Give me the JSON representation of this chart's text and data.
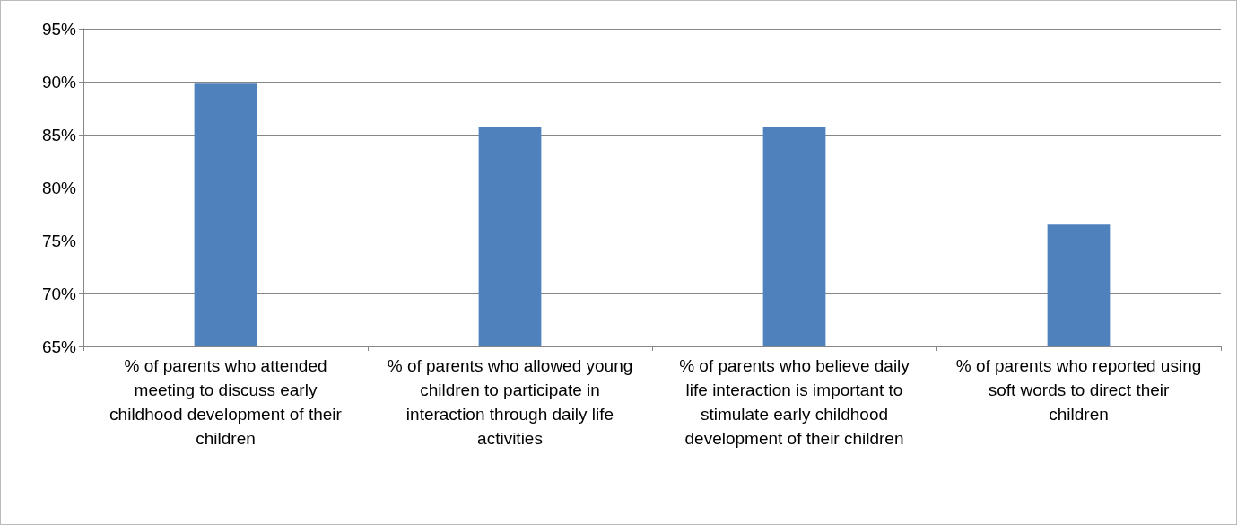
{
  "chart_data": {
    "type": "bar",
    "categories": [
      "% of parents who attended meeting to discuss early childhood development of their children",
      "% of parents who allowed young children to participate in interaction through daily life activities",
      "% of parents who believe daily life interaction is important to stimulate early childhood development of their children",
      "% of parents who reported using soft words to direct their children"
    ],
    "values": [
      89.8,
      85.7,
      85.7,
      76.5
    ],
    "color": "#4f81bd",
    "ylim": [
      65,
      95
    ],
    "yticks": [
      {
        "value": 65,
        "label": "65%"
      },
      {
        "value": 70,
        "label": "70%"
      },
      {
        "value": 75,
        "label": "75%"
      },
      {
        "value": 80,
        "label": "80%"
      },
      {
        "value": 85,
        "label": "85%"
      },
      {
        "value": 90,
        "label": "90%"
      },
      {
        "value": 95,
        "label": "95%"
      }
    ],
    "grid": "y"
  }
}
